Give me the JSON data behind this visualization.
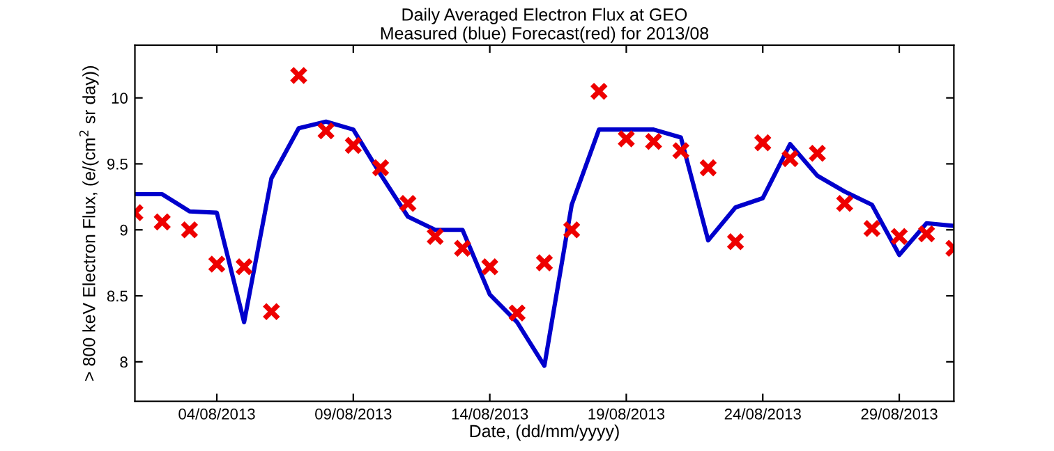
{
  "chart_data": {
    "type": "line",
    "title": "Daily Averaged Electron Flux at GEO\nMeasured (blue) Forecast(red) for 2013/08",
    "xlabel": "Date, (dd/mm/yyyy)",
    "ylabel": "> 800 keV Electron Flux, (e/(cm$^{2}$ sr day))",
    "x": [
      "2013-08-01",
      "2013-08-02",
      "2013-08-03",
      "2013-08-04",
      "2013-08-05",
      "2013-08-06",
      "2013-08-07",
      "2013-08-08",
      "2013-08-09",
      "2013-08-10",
      "2013-08-11",
      "2013-08-12",
      "2013-08-13",
      "2013-08-14",
      "2013-08-15",
      "2013-08-16",
      "2013-08-17",
      "2013-08-18",
      "2013-08-19",
      "2013-08-20",
      "2013-08-21",
      "2013-08-22",
      "2013-08-23",
      "2013-08-24",
      "2013-08-25",
      "2013-08-26",
      "2013-08-27",
      "2013-08-28",
      "2013-08-29",
      "2013-08-30",
      "2013-08-31"
    ],
    "series": [
      {
        "color": "#0000cc",
        "marker": "none",
        "line_style": "solid",
        "values": [
          9.27,
          9.27,
          9.14,
          9.13,
          8.3,
          9.39,
          9.77,
          9.82,
          9.76,
          9.42,
          9.1,
          9.0,
          9.0,
          8.51,
          8.3,
          7.97,
          9.19,
          9.76,
          9.76,
          9.76,
          9.7,
          8.92,
          9.17,
          9.24,
          9.65,
          9.41,
          9.29,
          9.19,
          8.81,
          9.05,
          9.03
        ]
      },
      {
        "type": "scatter",
        "color": "#ee0000",
        "marker": "cross",
        "values": [
          9.13,
          9.06,
          9.0,
          8.74,
          8.72,
          8.38,
          10.17,
          9.75,
          9.64,
          9.47,
          9.2,
          8.95,
          8.86,
          8.72,
          8.37,
          8.75,
          9.0,
          10.05,
          9.69,
          9.67,
          9.6,
          9.47,
          8.91,
          9.66,
          9.54,
          9.58,
          9.2,
          9.01,
          8.95,
          8.97,
          8.86
        ]
      }
    ],
    "xlim": [
      "2013-08-01",
      "2013-08-31"
    ],
    "xticks": [
      {
        "value": "2013-08-04",
        "label": "04/08/2013"
      },
      {
        "value": "2013-08-09",
        "label": "09/08/2013"
      },
      {
        "value": "2013-08-14",
        "label": "14/08/2013"
      },
      {
        "value": "2013-08-19",
        "label": "19/08/2013"
      },
      {
        "value": "2013-08-24",
        "label": "24/08/2013"
      },
      {
        "value": "2013-08-29",
        "label": "29/08/2013"
      }
    ],
    "ylim": [
      7.7,
      10.4
    ],
    "yticks": [
      8,
      {
        "value": 8.5,
        "label": "8.5"
      },
      9,
      {
        "value": 9.5,
        "label": "9.5"
      },
      10
    ],
    "grid": false
  }
}
